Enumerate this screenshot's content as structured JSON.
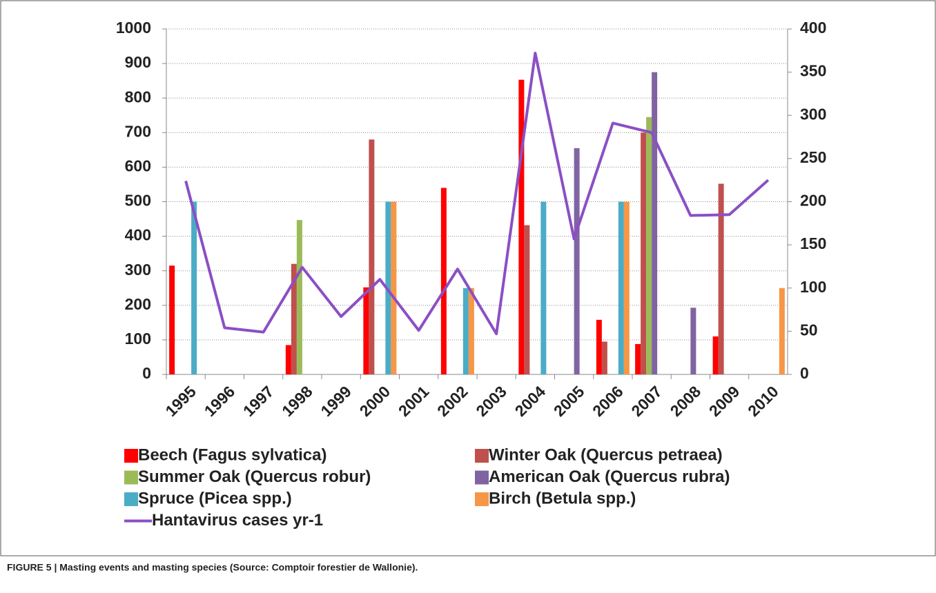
{
  "chart_data": {
    "type": "bar",
    "categories": [
      "1995",
      "1996",
      "1997",
      "1998",
      "1999",
      "2000",
      "2001",
      "2002",
      "2003",
      "2004",
      "2005",
      "2006",
      "2007",
      "2008",
      "2009",
      "2010"
    ],
    "series": [
      {
        "name": "Beech  (Fagus sylvatica)",
        "color": "#ff0000",
        "values": [
          315,
          null,
          null,
          85,
          null,
          252,
          null,
          540,
          null,
          853,
          null,
          158,
          88,
          null,
          110,
          null
        ]
      },
      {
        "name": "Winter Oak  (Quercus petraea)",
        "color": "#c0504d",
        "values": [
          null,
          null,
          null,
          320,
          null,
          680,
          null,
          null,
          null,
          432,
          null,
          95,
          700,
          null,
          552,
          null
        ]
      },
      {
        "name": "Summer Oak  (Quercus robur)",
        "color": "#9bbb59",
        "values": [
          null,
          null,
          null,
          447,
          null,
          null,
          null,
          null,
          null,
          null,
          null,
          null,
          745,
          null,
          null,
          null
        ]
      },
      {
        "name": "American Oak  (Quercus rubra)",
        "color": "#8064a2",
        "values": [
          null,
          null,
          null,
          null,
          null,
          null,
          null,
          null,
          null,
          null,
          655,
          null,
          875,
          193,
          null,
          null
        ]
      },
      {
        "name": "Spruce (Picea spp.)",
        "color": "#4bacc6",
        "values": [
          500,
          null,
          null,
          null,
          null,
          500,
          null,
          250,
          null,
          500,
          null,
          500,
          null,
          null,
          null,
          null
        ]
      },
      {
        "name": "Birch (Betula spp.)",
        "color": "#f79646",
        "values": [
          null,
          null,
          null,
          null,
          null,
          500,
          null,
          250,
          null,
          null,
          null,
          500,
          null,
          null,
          null,
          250
        ]
      },
      {
        "name": "Hantavirus cases yr-1",
        "color": "#8b4fc4",
        "type": "line",
        "axis": "y2",
        "values": [
          224,
          54,
          49,
          124,
          67,
          110,
          51,
          122,
          47,
          372,
          157,
          291,
          280,
          184,
          185,
          225
        ]
      }
    ],
    "ylim": [
      0,
      1000
    ],
    "yticks": [
      0,
      100,
      200,
      300,
      400,
      500,
      600,
      700,
      800,
      900,
      1000
    ],
    "y2lim": [
      0,
      400
    ],
    "y2ticks": [
      0,
      50,
      100,
      150,
      200,
      250,
      300,
      350,
      400
    ],
    "grid": true
  },
  "caption": "FIGURE 5 | Masting events and masting species (Source: Comptoir forestier de Wallonie)."
}
